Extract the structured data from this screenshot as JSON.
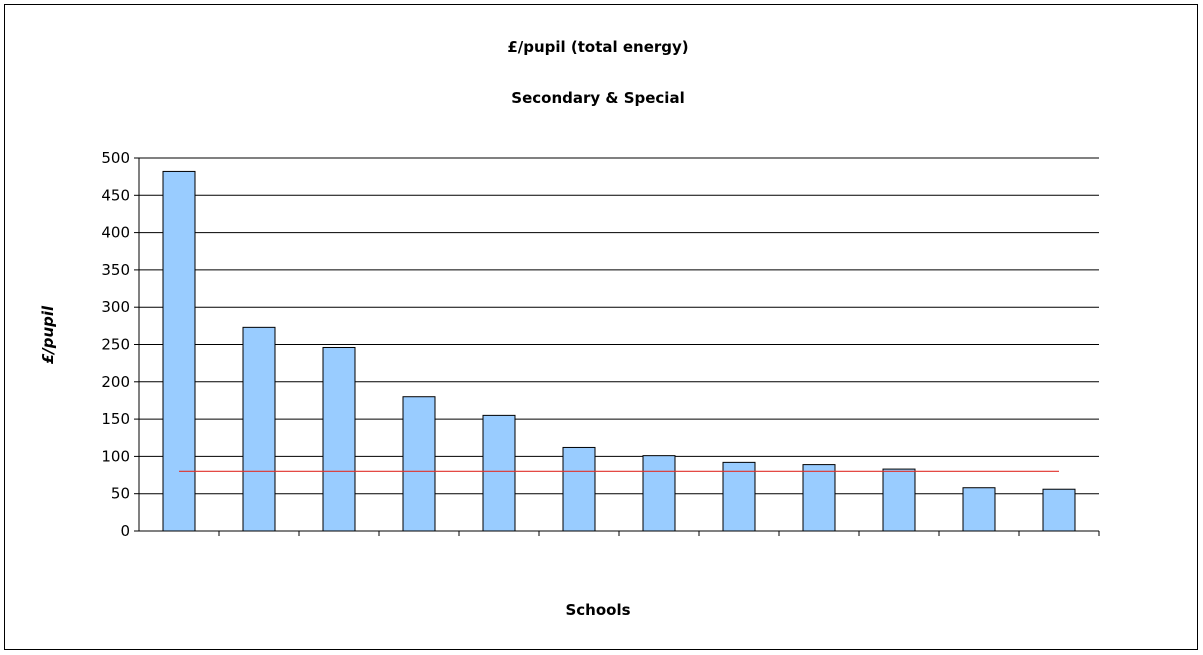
{
  "chart_data": {
    "type": "bar",
    "title": "£/pupil (total energy)",
    "subtitle": "Secondary & Special",
    "xlabel": "Schools",
    "ylabel": "£/pupil",
    "ylim": [
      0,
      500
    ],
    "yticks": [
      0,
      50,
      100,
      150,
      200,
      250,
      300,
      350,
      400,
      450,
      500
    ],
    "grid": true,
    "legend": "none",
    "categories": [
      "",
      "",
      "",
      "",
      "",
      "",
      "",
      "",
      "",
      "",
      "",
      ""
    ],
    "values": [
      482,
      273,
      246,
      180,
      155,
      112,
      101,
      92,
      89,
      83,
      58,
      56
    ],
    "reference_line": {
      "value": 80,
      "color": "#e0302a"
    },
    "colors": {
      "bar_fill": "#99ccff",
      "bar_stroke": "#000000",
      "gridline": "#000000",
      "axis": "#000000",
      "frame": "#000000"
    }
  }
}
